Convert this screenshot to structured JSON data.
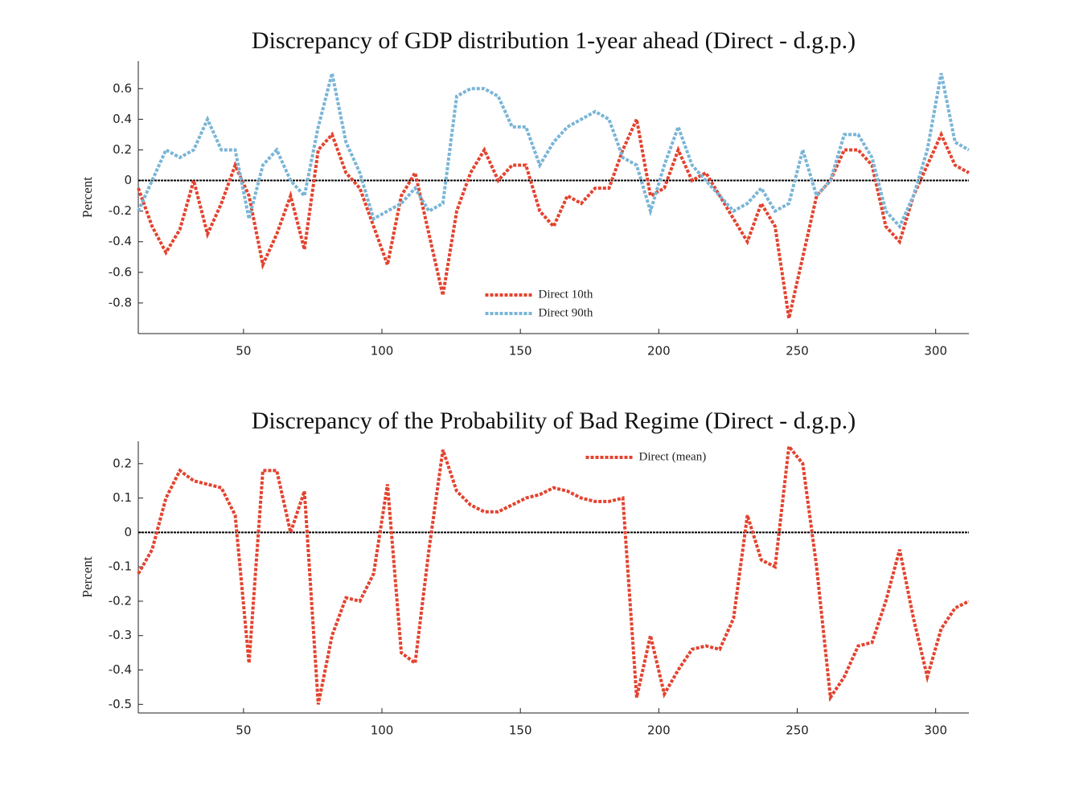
{
  "chart_data": [
    {
      "type": "line",
      "title": "Discrepancy of GDP distribution 1-year ahead (Direct - d.g.p.)",
      "y_label": "Percent",
      "xlim": [
        12,
        312
      ],
      "xticks": [
        50,
        100,
        150,
        200,
        250,
        300
      ],
      "ylim": [
        -1.0,
        0.78
      ],
      "yticks": [
        -0.8,
        -0.6,
        -0.4,
        -0.2,
        0,
        0.2,
        0.4,
        0.6
      ],
      "reference_line": 0,
      "legend": "lower center",
      "x": [
        12,
        17,
        22,
        27,
        32,
        37,
        42,
        47,
        52,
        57,
        62,
        67,
        72,
        77,
        82,
        87,
        92,
        97,
        102,
        107,
        112,
        117,
        122,
        127,
        132,
        137,
        142,
        147,
        152,
        157,
        162,
        167,
        172,
        177,
        182,
        187,
        192,
        197,
        202,
        207,
        212,
        217,
        222,
        227,
        232,
        237,
        242,
        247,
        252,
        257,
        262,
        267,
        272,
        277,
        282,
        287,
        292,
        297,
        302,
        307,
        312
      ],
      "series": [
        {
          "name": "Direct 10th",
          "color": "#e3432f",
          "values": [
            -0.05,
            -0.3,
            -0.47,
            -0.32,
            0.0,
            -0.35,
            -0.15,
            0.1,
            -0.1,
            -0.55,
            -0.35,
            -0.1,
            -0.45,
            0.2,
            0.3,
            0.05,
            -0.05,
            -0.3,
            -0.55,
            -0.1,
            0.05,
            -0.35,
            -0.75,
            -0.2,
            0.05,
            0.2,
            0.0,
            0.1,
            0.1,
            -0.2,
            -0.3,
            -0.1,
            -0.15,
            -0.05,
            -0.05,
            0.2,
            0.4,
            -0.1,
            -0.05,
            0.2,
            0.0,
            0.05,
            -0.1,
            -0.25,
            -0.4,
            -0.15,
            -0.3,
            -0.9,
            -0.5,
            -0.1,
            0.0,
            0.2,
            0.2,
            0.1,
            -0.3,
            -0.4,
            -0.1,
            0.1,
            0.3,
            0.1,
            0.05
          ]
        },
        {
          "name": "Direct 90th",
          "color": "#7ab5d6",
          "values": [
            -0.2,
            0.0,
            0.2,
            0.15,
            0.2,
            0.4,
            0.2,
            0.2,
            -0.25,
            0.1,
            0.2,
            0.0,
            -0.1,
            0.35,
            0.7,
            0.25,
            0.05,
            -0.25,
            -0.2,
            -0.15,
            -0.05,
            -0.2,
            -0.15,
            0.55,
            0.6,
            0.6,
            0.55,
            0.35,
            0.35,
            0.1,
            0.25,
            0.35,
            0.4,
            0.45,
            0.4,
            0.15,
            0.1,
            -0.2,
            0.1,
            0.35,
            0.1,
            0.0,
            -0.1,
            -0.2,
            -0.15,
            -0.05,
            -0.2,
            -0.15,
            0.2,
            -0.1,
            0.0,
            0.3,
            0.3,
            0.15,
            -0.2,
            -0.3,
            -0.1,
            0.2,
            0.7,
            0.25,
            0.2
          ]
        }
      ]
    },
    {
      "type": "line",
      "title": "Discrepancy of the Probability of Bad Regime (Direct - d.g.p.)",
      "y_label": "Percent",
      "xlim": [
        12,
        312
      ],
      "xticks": [
        50,
        100,
        150,
        200,
        250,
        300
      ],
      "ylim": [
        -0.525,
        0.265
      ],
      "yticks": [
        -0.5,
        -0.4,
        -0.3,
        -0.2,
        -0.1,
        0,
        0.1,
        0.2
      ],
      "reference_line": 0,
      "legend": "upper center",
      "x": [
        12,
        17,
        22,
        27,
        32,
        37,
        42,
        47,
        52,
        57,
        62,
        67,
        72,
        77,
        82,
        87,
        92,
        97,
        102,
        107,
        112,
        117,
        122,
        127,
        132,
        137,
        142,
        147,
        152,
        157,
        162,
        167,
        172,
        177,
        182,
        187,
        192,
        197,
        202,
        207,
        212,
        217,
        222,
        227,
        232,
        237,
        242,
        247,
        252,
        257,
        262,
        267,
        272,
        277,
        282,
        287,
        292,
        297,
        302,
        307,
        312
      ],
      "series": [
        {
          "name": "Direct (mean)",
          "color": "#e3432f",
          "values": [
            -0.12,
            -0.05,
            0.1,
            0.18,
            0.15,
            0.14,
            0.13,
            0.05,
            -0.38,
            0.18,
            0.18,
            0.0,
            0.12,
            -0.5,
            -0.3,
            -0.19,
            -0.2,
            -0.12,
            0.14,
            -0.35,
            -0.38,
            -0.05,
            0.24,
            0.12,
            0.08,
            0.06,
            0.06,
            0.08,
            0.1,
            0.11,
            0.13,
            0.12,
            0.1,
            0.09,
            0.09,
            0.1,
            -0.48,
            -0.3,
            -0.47,
            -0.4,
            -0.34,
            -0.33,
            -0.34,
            -0.25,
            0.05,
            -0.08,
            -0.1,
            0.25,
            0.2,
            -0.1,
            -0.48,
            -0.42,
            -0.33,
            -0.32,
            -0.2,
            -0.05,
            -0.25,
            -0.42,
            -0.28,
            -0.22,
            -0.2
          ]
        }
      ]
    }
  ]
}
